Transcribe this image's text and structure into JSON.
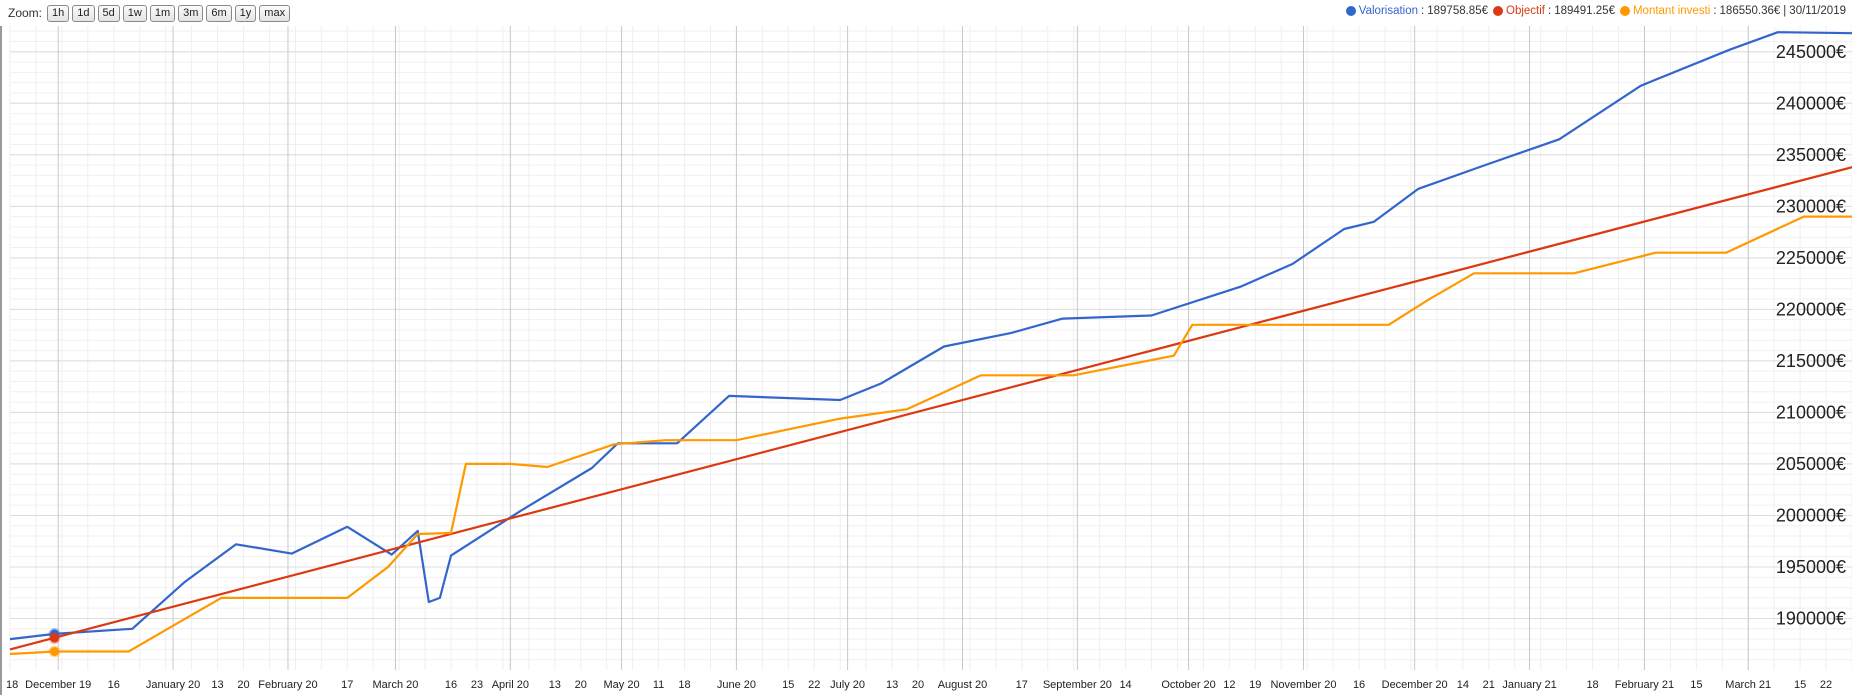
{
  "zoom": {
    "label": "Zoom:",
    "buttons": [
      "1h",
      "1d",
      "5d",
      "1w",
      "1m",
      "3m",
      "6m",
      "1y",
      "max"
    ]
  },
  "legend": {
    "items": [
      {
        "name": "Valorisation",
        "value": "189758.85€",
        "color": "#3366cc"
      },
      {
        "name": "Objectif",
        "value": "189491.25€",
        "color": "#dc3912"
      },
      {
        "name": "Montant investi",
        "value": "186550.36€",
        "color": "#ff9900"
      }
    ],
    "date": "30/11/2019"
  },
  "chart_data": {
    "type": "line",
    "ylim": [
      185000,
      247500
    ],
    "yticks": [
      190000,
      195000,
      200000,
      205000,
      210000,
      215000,
      220000,
      225000,
      230000,
      235000,
      240000,
      245000
    ],
    "ytick_suffix": "€",
    "xlim": [
      "2019-11-18",
      "2021-03-29"
    ],
    "xtick_labels": [
      {
        "date": "2019-11-18",
        "label": "18"
      },
      {
        "date": "2019-12-01",
        "label": "December 19"
      },
      {
        "date": "2019-12-16",
        "label": "16"
      },
      {
        "date": "2020-01-01",
        "label": "January 20"
      },
      {
        "date": "2020-01-13",
        "label": "13"
      },
      {
        "date": "2020-01-20",
        "label": "20"
      },
      {
        "date": "2020-02-01",
        "label": "February 20"
      },
      {
        "date": "2020-02-17",
        "label": "17"
      },
      {
        "date": "2020-03-01",
        "label": "March 20"
      },
      {
        "date": "2020-03-16",
        "label": "16"
      },
      {
        "date": "2020-03-23",
        "label": "23"
      },
      {
        "date": "2020-04-01",
        "label": "April 20"
      },
      {
        "date": "2020-04-13",
        "label": "13"
      },
      {
        "date": "2020-04-20",
        "label": "20"
      },
      {
        "date": "2020-05-01",
        "label": "May 20"
      },
      {
        "date": "2020-05-11",
        "label": "11"
      },
      {
        "date": "2020-05-18",
        "label": "18"
      },
      {
        "date": "2020-06-01",
        "label": "June 20"
      },
      {
        "date": "2020-06-15",
        "label": "15"
      },
      {
        "date": "2020-06-22",
        "label": "22"
      },
      {
        "date": "2020-07-01",
        "label": "July 20"
      },
      {
        "date": "2020-07-13",
        "label": "13"
      },
      {
        "date": "2020-07-20",
        "label": "20"
      },
      {
        "date": "2020-08-01",
        "label": "August 20"
      },
      {
        "date": "2020-08-17",
        "label": "17"
      },
      {
        "date": "2020-09-01",
        "label": "September 20"
      },
      {
        "date": "2020-09-14",
        "label": "14"
      },
      {
        "date": "2020-10-01",
        "label": "October 20"
      },
      {
        "date": "2020-10-12",
        "label": "12"
      },
      {
        "date": "2020-10-19",
        "label": "19"
      },
      {
        "date": "2020-11-01",
        "label": "November 20"
      },
      {
        "date": "2020-11-16",
        "label": "16"
      },
      {
        "date": "2020-12-01",
        "label": "December 20"
      },
      {
        "date": "2020-12-14",
        "label": "14"
      },
      {
        "date": "2020-12-21",
        "label": "21"
      },
      {
        "date": "2021-01-01",
        "label": "January 21"
      },
      {
        "date": "2021-01-18",
        "label": "18"
      },
      {
        "date": "2021-02-01",
        "label": "February 21"
      },
      {
        "date": "2021-02-15",
        "label": "15"
      },
      {
        "date": "2021-03-01",
        "label": "March 21"
      },
      {
        "date": "2021-03-15",
        "label": "15"
      },
      {
        "date": "2021-03-22",
        "label": "22"
      }
    ],
    "grid": true,
    "series": [
      {
        "name": "Valorisation",
        "color": "#3366cc",
        "points": [
          [
            "2019-11-18",
            188000
          ],
          [
            "2019-11-30",
            188500
          ],
          [
            "2019-12-21",
            189000
          ],
          [
            "2020-01-04",
            193500
          ],
          [
            "2020-01-18",
            197200
          ],
          [
            "2020-02-02",
            196300
          ],
          [
            "2020-02-17",
            198900
          ],
          [
            "2020-02-29",
            196200
          ],
          [
            "2020-03-07",
            198500
          ],
          [
            "2020-03-10",
            191600
          ],
          [
            "2020-03-13",
            192000
          ],
          [
            "2020-03-16",
            196100
          ],
          [
            "2020-04-04",
            200500
          ],
          [
            "2020-04-23",
            204600
          ],
          [
            "2020-04-30",
            207000
          ],
          [
            "2020-05-16",
            207000
          ],
          [
            "2020-05-30",
            211600
          ],
          [
            "2020-06-29",
            211200
          ],
          [
            "2020-07-10",
            212800
          ],
          [
            "2020-07-27",
            216400
          ],
          [
            "2020-08-14",
            217700
          ],
          [
            "2020-08-28",
            219100
          ],
          [
            "2020-09-21",
            219400
          ],
          [
            "2020-10-15",
            222200
          ],
          [
            "2020-10-29",
            224400
          ],
          [
            "2020-11-12",
            227800
          ],
          [
            "2020-11-20",
            228500
          ],
          [
            "2020-12-02",
            231700
          ],
          [
            "2020-12-20",
            234000
          ],
          [
            "2021-01-09",
            236500
          ],
          [
            "2021-01-31",
            241700
          ],
          [
            "2021-02-24",
            245200
          ],
          [
            "2021-03-09",
            246900
          ],
          [
            "2021-03-29",
            246800
          ]
        ]
      },
      {
        "name": "Objectif",
        "color": "#dc3912",
        "points": [
          [
            "2019-11-18",
            187000
          ],
          [
            "2021-03-29",
            233800
          ]
        ]
      },
      {
        "name": "Montant investi",
        "color": "#ff9900",
        "points": [
          [
            "2019-11-18",
            186550
          ],
          [
            "2019-11-30",
            186800
          ],
          [
            "2019-12-20",
            186800
          ],
          [
            "2020-01-02",
            189500
          ],
          [
            "2020-01-14",
            192000
          ],
          [
            "2020-02-17",
            192000
          ],
          [
            "2020-02-28",
            195000
          ],
          [
            "2020-03-07",
            198200
          ],
          [
            "2020-03-16",
            198300
          ],
          [
            "2020-03-20",
            205000
          ],
          [
            "2020-04-01",
            205000
          ],
          [
            "2020-04-11",
            204700
          ],
          [
            "2020-04-29",
            206900
          ],
          [
            "2020-05-13",
            207300
          ],
          [
            "2020-06-01",
            207300
          ],
          [
            "2020-06-29",
            209400
          ],
          [
            "2020-07-17",
            210300
          ],
          [
            "2020-08-06",
            213600
          ],
          [
            "2020-08-31",
            213600
          ],
          [
            "2020-09-27",
            215500
          ],
          [
            "2020-10-02",
            218500
          ],
          [
            "2020-11-24",
            218500
          ],
          [
            "2020-12-05",
            221000
          ],
          [
            "2020-12-17",
            223500
          ],
          [
            "2021-01-13",
            223500
          ],
          [
            "2021-02-04",
            225500
          ],
          [
            "2021-02-23",
            225500
          ],
          [
            "2021-03-16",
            229000
          ],
          [
            "2021-03-29",
            229000
          ]
        ]
      }
    ],
    "markers": [
      {
        "series": "Valorisation",
        "date": "2019-11-30",
        "value": 188500,
        "color": "#3366cc"
      },
      {
        "series": "Objectif",
        "date": "2019-11-30",
        "value": 188100,
        "color": "#dc3912"
      },
      {
        "series": "Montant investi",
        "date": "2019-11-30",
        "value": 186800,
        "color": "#ff9900"
      }
    ]
  }
}
